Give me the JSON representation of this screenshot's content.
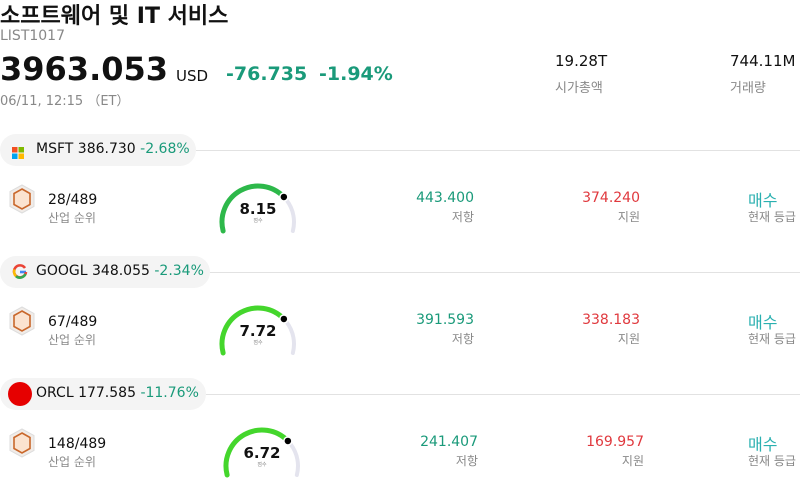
{
  "header": {
    "title": "소프트웨어 및 IT 서비스",
    "code": "LIST1017",
    "price": "3963.053",
    "currency": "USD",
    "change": "-76.735",
    "change_pct": "-1.94%",
    "datetime": "06/11, 12:15 （ET）",
    "market_cap": "19.28T",
    "market_cap_label": "시가총액",
    "volume": "744.11M",
    "volume_label": "거래량"
  },
  "stocks": [
    {
      "ticker": "MSFT",
      "price": "386.730",
      "change_pct": "-2.68%",
      "rank": "28/489",
      "rank_label": "산업 순위",
      "score": "8.15",
      "score_label": "점수",
      "resistance": "443.400",
      "resistance_label": "저항",
      "support": "374.240",
      "support_label": "지원",
      "rating": "매수",
      "rating_label": "현재 등급"
    },
    {
      "ticker": "GOOGL",
      "price": "348.055",
      "change_pct": "-2.34%",
      "rank": "67/489",
      "rank_label": "산업 순위",
      "score": "7.72",
      "score_label": "점수",
      "resistance": "391.593",
      "resistance_label": "저항",
      "support": "338.183",
      "support_label": "지원",
      "rating": "매수",
      "rating_label": "현재 등급"
    },
    {
      "ticker": "ORCL",
      "price": "177.585",
      "change_pct": "-11.76%",
      "rank": "148/489",
      "rank_label": "산업 순위",
      "score": "6.72",
      "score_label": "점수",
      "resistance": "241.407",
      "resistance_label": "저항",
      "support": "169.957",
      "support_label": "지원",
      "rating": "매수",
      "rating_label": "현재 등급"
    }
  ]
}
